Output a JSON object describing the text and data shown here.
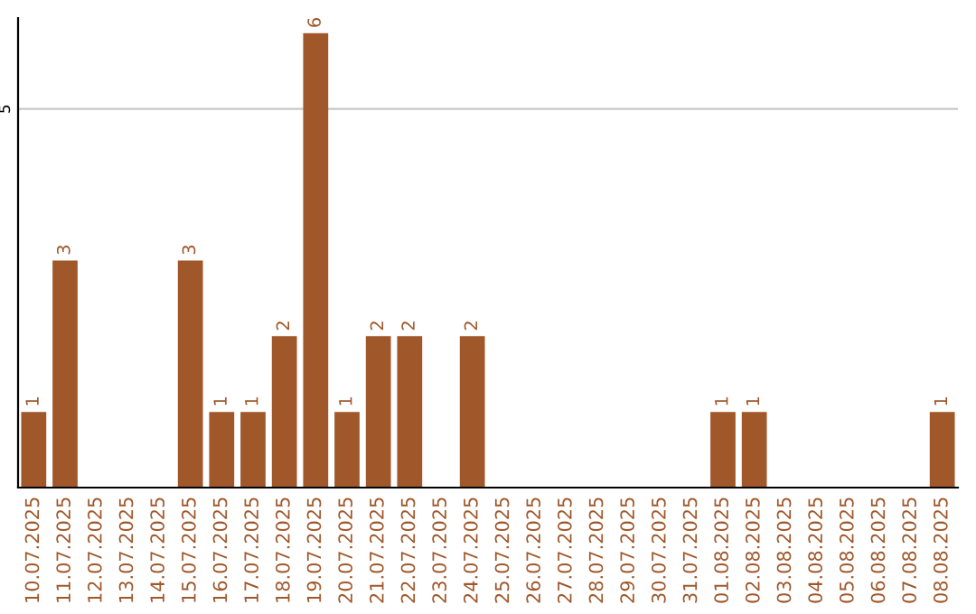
{
  "chart_data": {
    "type": "bar",
    "categories": [
      "10.07.2025",
      "11.07.2025",
      "12.07.2025",
      "13.07.2025",
      "14.07.2025",
      "15.07.2025",
      "16.07.2025",
      "17.07.2025",
      "18.07.2025",
      "19.07.2025",
      "20.07.2025",
      "21.07.2025",
      "22.07.2025",
      "23.07.2025",
      "24.07.2025",
      "25.07.2025",
      "26.07.2025",
      "27.07.2025",
      "28.07.2025",
      "29.07.2025",
      "30.07.2025",
      "31.07.2025",
      "01.08.2025",
      "02.08.2025",
      "03.08.2025",
      "04.08.2025",
      "05.08.2025",
      "06.08.2025",
      "07.08.2025",
      "08.08.2025"
    ],
    "values": [
      1,
      3,
      0,
      0,
      0,
      3,
      1,
      1,
      2,
      6,
      1,
      2,
      2,
      0,
      2,
      0,
      0,
      0,
      0,
      0,
      0,
      0,
      1,
      1,
      0,
      0,
      0,
      0,
      0,
      1
    ],
    "value_labels": [
      "1",
      "3",
      null,
      null,
      null,
      "3",
      "1",
      "1",
      "2",
      "6",
      "1",
      "2",
      "2",
      null,
      "2",
      null,
      null,
      null,
      null,
      null,
      null,
      null,
      "1",
      "1",
      null,
      null,
      null,
      null,
      null,
      "1"
    ],
    "color": "#a0572a",
    "ylim": [
      0,
      6.2
    ],
    "yticks": [
      5
    ],
    "grid": "y"
  }
}
